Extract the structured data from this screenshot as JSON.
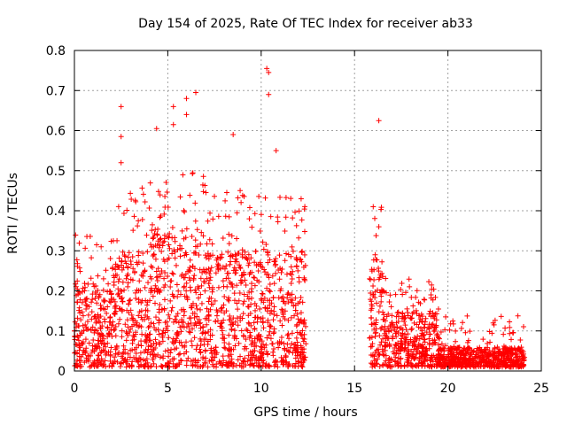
{
  "chart_data": {
    "type": "scatter",
    "title": "Day 154 of 2025, Rate Of TEC Index for receiver ab33",
    "xlabel": "GPS time / hours",
    "ylabel": "ROTI / TECUs",
    "xlim": [
      0,
      25
    ],
    "ylim": [
      0,
      0.8
    ],
    "xticks": [
      0,
      5,
      10,
      15,
      20,
      25
    ],
    "xtick_labels": [
      "0",
      "5",
      "10",
      "15",
      "20",
      "25"
    ],
    "yticks": [
      0,
      0.1,
      0.2,
      0.3,
      0.4,
      0.5,
      0.6,
      0.7,
      0.8
    ],
    "ytick_labels": [
      "0",
      "0.1",
      "0.2",
      "0.3",
      "0.4",
      "0.5",
      "0.6",
      "0.7",
      "0.8"
    ],
    "grid": true,
    "marker": "+",
    "color": "#ff0000",
    "notable_points": [
      {
        "x": 2.5,
        "y": 0.66
      },
      {
        "x": 2.5,
        "y": 0.585
      },
      {
        "x": 2.5,
        "y": 0.52
      },
      {
        "x": 4.4,
        "y": 0.605
      },
      {
        "x": 5.3,
        "y": 0.66
      },
      {
        "x": 5.3,
        "y": 0.615
      },
      {
        "x": 6.0,
        "y": 0.68
      },
      {
        "x": 6.0,
        "y": 0.64
      },
      {
        "x": 6.5,
        "y": 0.695
      },
      {
        "x": 8.5,
        "y": 0.59
      },
      {
        "x": 10.3,
        "y": 0.755
      },
      {
        "x": 10.4,
        "y": 0.745
      },
      {
        "x": 10.4,
        "y": 0.69
      },
      {
        "x": 10.8,
        "y": 0.55
      },
      {
        "x": 16.3,
        "y": 0.625
      },
      {
        "x": 16.0,
        "y": 0.41
      },
      {
        "x": 16.3,
        "y": 0.36
      }
    ],
    "segments": [
      {
        "x_start": 0.0,
        "x_end": 2.0,
        "y_typical_max": 0.22,
        "y_peak": 0.34
      },
      {
        "x_start": 2.0,
        "x_end": 4.0,
        "y_typical_max": 0.3,
        "y_peak": 0.46
      },
      {
        "x_start": 4.0,
        "x_end": 7.0,
        "y_typical_max": 0.36,
        "y_peak": 0.5
      },
      {
        "x_start": 7.0,
        "x_end": 9.5,
        "y_typical_max": 0.3,
        "y_peak": 0.46
      },
      {
        "x_start": 9.5,
        "x_end": 12.4,
        "y_typical_max": 0.3,
        "y_peak": 0.46
      },
      {
        "x_start": 15.8,
        "x_end": 16.5,
        "y_typical_max": 0.3,
        "y_peak": 0.41
      },
      {
        "x_start": 16.5,
        "x_end": 19.5,
        "y_typical_max": 0.15,
        "y_peak": 0.24
      },
      {
        "x_start": 19.5,
        "x_end": 24.1,
        "y_typical_max": 0.06,
        "y_peak": 0.14
      }
    ]
  }
}
